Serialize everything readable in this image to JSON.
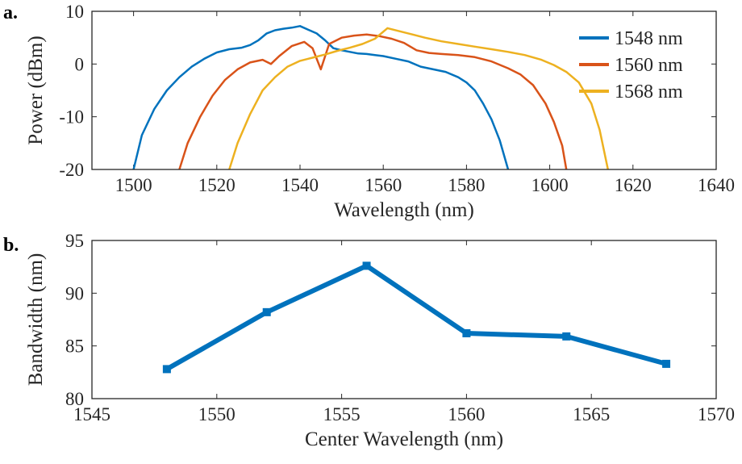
{
  "panel_labels": {
    "a": "a.",
    "b": "b."
  },
  "chart_data": [
    {
      "type": "line",
      "title": "",
      "xlabel": "Wavelength (nm)",
      "ylabel": "Power (dBm)",
      "xlim": [
        1490,
        1640
      ],
      "ylim": [
        -20,
        10
      ],
      "xticks": [
        1500,
        1520,
        1540,
        1560,
        1580,
        1600,
        1620,
        1640
      ],
      "yticks": [
        -20,
        -10,
        0,
        10
      ],
      "legend_position": "top-right",
      "series": [
        {
          "name": "1548 nm",
          "color": "#0072BD",
          "x": [
            1500,
            1502,
            1505,
            1508,
            1511,
            1514,
            1517,
            1520,
            1523,
            1526,
            1528,
            1530,
            1532,
            1534,
            1536,
            1538,
            1540,
            1542,
            1544,
            1546,
            1548,
            1550,
            1552,
            1554,
            1556,
            1558,
            1560,
            1563,
            1566,
            1569,
            1572,
            1575,
            1578,
            1580,
            1582,
            1584,
            1586,
            1588,
            1590
          ],
          "y": [
            -20,
            -13.5,
            -8.5,
            -5,
            -2.5,
            -0.5,
            1,
            2.2,
            2.8,
            3.1,
            3.6,
            4.5,
            5.8,
            6.4,
            6.7,
            6.9,
            7.2,
            6.5,
            5.8,
            4.5,
            3,
            2.6,
            2.3,
            2,
            1.9,
            1.7,
            1.5,
            1,
            0.5,
            -0.5,
            -1,
            -1.5,
            -2.5,
            -3.5,
            -5,
            -7.5,
            -10.5,
            -14.5,
            -20
          ]
        },
        {
          "name": "1560 nm",
          "color": "#D95319",
          "x": [
            1511,
            1513,
            1516,
            1519,
            1522,
            1525,
            1528,
            1531,
            1533,
            1535,
            1538,
            1541,
            1543,
            1545,
            1547,
            1550,
            1553,
            1556,
            1559,
            1562,
            1565,
            1568,
            1571,
            1574,
            1578,
            1582,
            1586,
            1590,
            1593,
            1596,
            1599,
            1601,
            1603,
            1604
          ],
          "y": [
            -20,
            -15,
            -10,
            -6,
            -3,
            -1,
            0.3,
            0.8,
            0,
            1.5,
            3.4,
            4.2,
            3,
            -1,
            3.8,
            5,
            5.4,
            5.6,
            5.3,
            4.8,
            4,
            2.6,
            2.1,
            1.9,
            1.7,
            1.3,
            0.5,
            -0.8,
            -2,
            -4,
            -7.5,
            -11,
            -15.5,
            -20
          ]
        },
        {
          "name": "1568 nm",
          "color": "#EDB120",
          "x": [
            1523,
            1525,
            1528,
            1531,
            1534,
            1537,
            1540,
            1543,
            1546,
            1549,
            1552,
            1555,
            1558,
            1561,
            1564,
            1567,
            1570,
            1574,
            1578,
            1582,
            1586,
            1590,
            1594,
            1598,
            1601,
            1604,
            1607,
            1610,
            1612,
            1614
          ],
          "y": [
            -20,
            -15,
            -9.5,
            -5,
            -2.5,
            -0.5,
            0.6,
            1.2,
            1.8,
            2.5,
            3.1,
            3.8,
            4.8,
            6.8,
            6.2,
            5.6,
            5,
            4.3,
            3.8,
            3.3,
            2.8,
            2.3,
            1.7,
            0.8,
            -0.2,
            -1.5,
            -3.5,
            -7.5,
            -12.5,
            -20
          ]
        }
      ]
    },
    {
      "type": "line",
      "title": "",
      "xlabel": "Center Wavelength (nm)",
      "ylabel": "Bandwidth (nm)",
      "xlim": [
        1545,
        1570
      ],
      "ylim": [
        80,
        95
      ],
      "xticks": [
        1545,
        1550,
        1555,
        1560,
        1565,
        1570
      ],
      "yticks": [
        80,
        85,
        90,
        95
      ],
      "marker": "square",
      "series": [
        {
          "name": "Bandwidth",
          "color": "#0072BD",
          "x": [
            1548,
            1552,
            1556,
            1560,
            1564,
            1568
          ],
          "y": [
            82.8,
            88.2,
            92.6,
            86.2,
            85.9,
            83.3
          ]
        }
      ]
    }
  ]
}
